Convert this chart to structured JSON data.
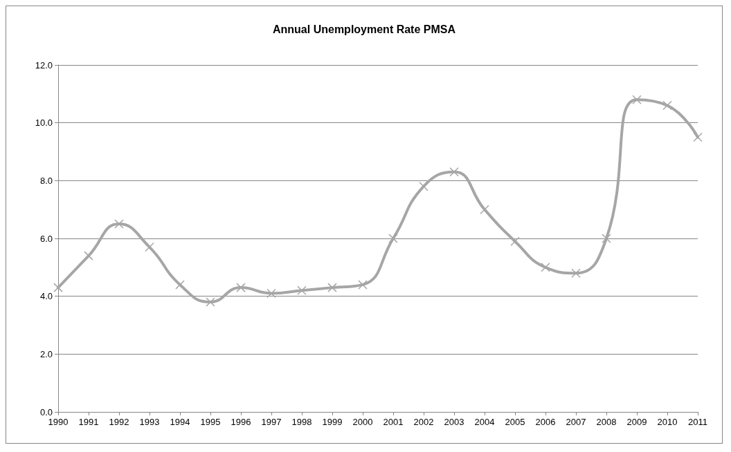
{
  "chart_data": {
    "type": "line",
    "title": "Annual Unemployment Rate PMSA",
    "categories": [
      "1990",
      "1991",
      "1992",
      "1993",
      "1994",
      "1995",
      "1996",
      "1997",
      "1998",
      "1999",
      "2000",
      "2001",
      "2002",
      "2003",
      "2004",
      "2005",
      "2006",
      "2007",
      "2008",
      "2009",
      "2010",
      "2011"
    ],
    "series": [
      {
        "color": "#a6a6a6",
        "values": [
          4.3,
          5.4,
          6.5,
          5.7,
          4.4,
          3.8,
          4.3,
          4.1,
          4.2,
          4.3,
          4.4,
          6.0,
          7.8,
          8.3,
          7.0,
          5.9,
          5.0,
          4.8,
          6.0,
          10.8,
          10.6,
          9.5
        ]
      }
    ],
    "ylim": [
      0,
      12
    ],
    "yticks": [
      {
        "value": 0,
        "label": "0.0"
      },
      {
        "value": 2,
        "label": "2.0"
      },
      {
        "value": 4,
        "label": "4.0"
      },
      {
        "value": 6,
        "label": "6.0"
      },
      {
        "value": 8,
        "label": "8.0"
      },
      {
        "value": 10,
        "label": "10.0"
      },
      {
        "value": 12,
        "label": "12.0"
      }
    ],
    "grid": "y",
    "marker": "cross",
    "line_style": "solid"
  }
}
